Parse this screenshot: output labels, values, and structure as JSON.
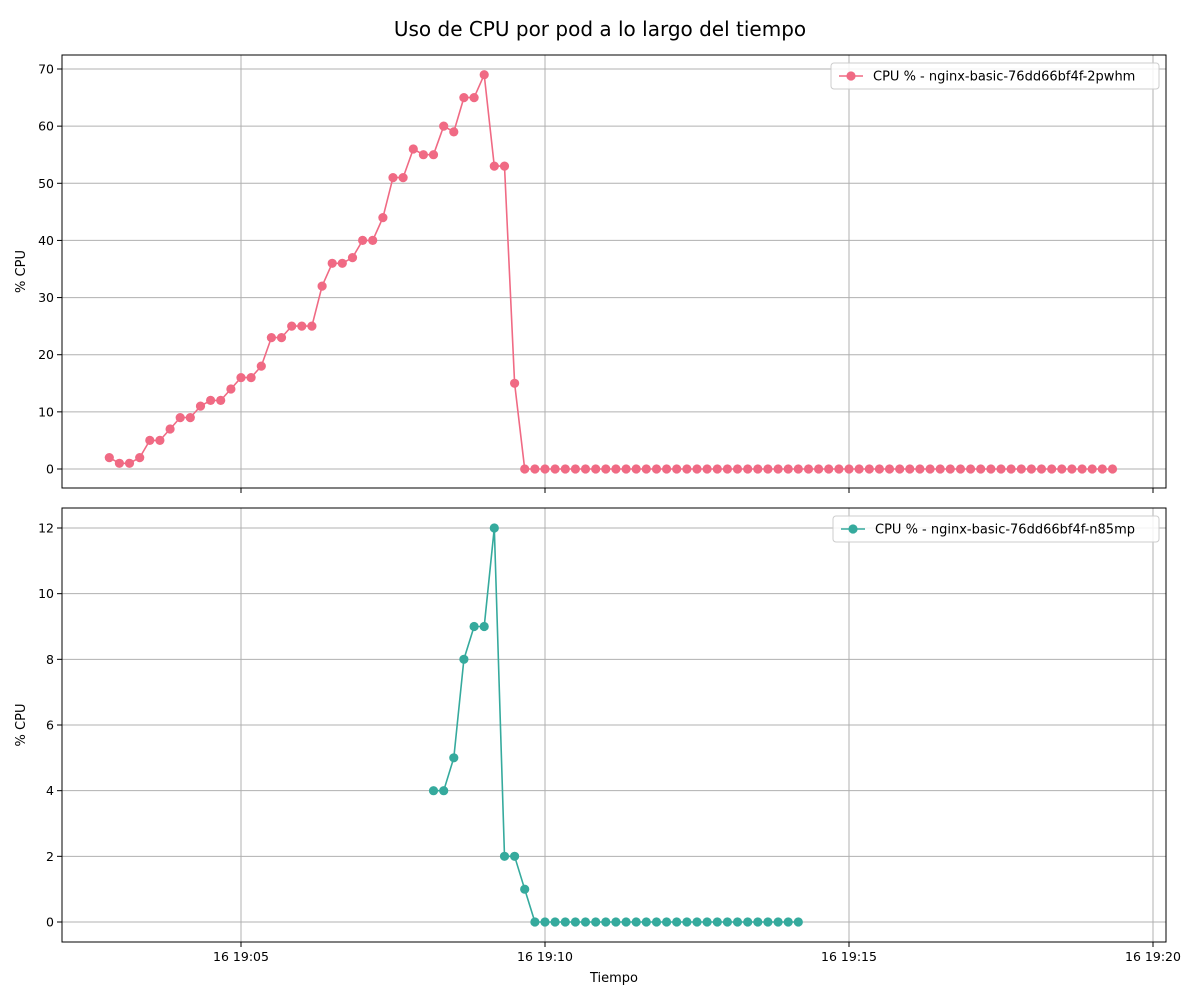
{
  "chart_data": {
    "title": "Uso de CPU por pod a lo largo del tiempo",
    "xlabel": "Tiempo",
    "type": "line",
    "x_ticks": [
      "16 19:05",
      "16 19:10",
      "16 19:15",
      "16 19:20"
    ],
    "grid": true,
    "legend_position": "top-right",
    "subplots": [
      {
        "type": "line",
        "ylabel": "% CPU",
        "ylim": [
          0,
          70
        ],
        "y_ticks": [
          "0",
          "10",
          "20",
          "30",
          "40",
          "50",
          "60",
          "70"
        ],
        "color": "#f06a84",
        "series": [
          {
            "name": "CPU % - nginx-basic-76dd66bf4f-2pwhm",
            "x": [
              "19:02:50",
              "19:03:00",
              "19:03:10",
              "19:03:20",
              "19:03:30",
              "19:03:40",
              "19:03:50",
              "19:04:00",
              "19:04:10",
              "19:04:20",
              "19:04:30",
              "19:04:40",
              "19:04:50",
              "19:05:00",
              "19:05:10",
              "19:05:20",
              "19:05:30",
              "19:05:40",
              "19:05:50",
              "19:06:00",
              "19:06:10",
              "19:06:20",
              "19:06:30",
              "19:06:40",
              "19:06:50",
              "19:07:00",
              "19:07:10",
              "19:07:20",
              "19:07:30",
              "19:07:40",
              "19:07:50",
              "19:08:00",
              "19:08:10",
              "19:08:20",
              "19:08:30",
              "19:08:40",
              "19:08:50",
              "19:09:00",
              "19:09:10",
              "19:09:20",
              "19:09:30",
              "19:09:40",
              "19:09:50",
              "19:10:00",
              "19:10:10",
              "19:10:20",
              "19:10:30",
              "19:10:40",
              "19:10:50",
              "19:11:00",
              "19:11:10",
              "19:11:20",
              "19:11:30",
              "19:11:40",
              "19:11:50",
              "19:12:00",
              "19:12:10",
              "19:12:20",
              "19:12:30",
              "19:12:40",
              "19:12:50",
              "19:13:00",
              "19:13:10",
              "19:13:20",
              "19:13:30",
              "19:13:40",
              "19:13:50",
              "19:14:00",
              "19:14:10",
              "19:14:20",
              "19:14:30",
              "19:14:40",
              "19:14:50",
              "19:15:00",
              "19:15:10",
              "19:15:20",
              "19:15:30",
              "19:15:40",
              "19:15:50",
              "19:16:00",
              "19:16:10",
              "19:16:20",
              "19:16:30",
              "19:16:40",
              "19:16:50",
              "19:17:00",
              "19:17:10",
              "19:17:20",
              "19:17:30",
              "19:17:40",
              "19:17:50",
              "19:18:00",
              "19:18:10",
              "19:18:20",
              "19:18:30",
              "19:18:40",
              "19:18:50",
              "19:19:00",
              "19:19:10",
              "19:19:20"
            ],
            "values": [
              2,
              1,
              1,
              2,
              5,
              5,
              7,
              9,
              9,
              11,
              12,
              12,
              14,
              16,
              16,
              18,
              23,
              23,
              25,
              25,
              25,
              32,
              36,
              36,
              37,
              40,
              40,
              44,
              51,
              51,
              56,
              55,
              55,
              60,
              59,
              65,
              65,
              69,
              53,
              53,
              15,
              0,
              0,
              0,
              0,
              0,
              0,
              0,
              0,
              0,
              0,
              0,
              0,
              0,
              0,
              0,
              0,
              0,
              0,
              0,
              0,
              0,
              0,
              0,
              0,
              0,
              0,
              0,
              0,
              0,
              0,
              0,
              0,
              0,
              0,
              0,
              0,
              0,
              0,
              0,
              0,
              0,
              0,
              0,
              0,
              0,
              0,
              0,
              0,
              0,
              0,
              0,
              0,
              0,
              0,
              0,
              0,
              0,
              0,
              0
            ]
          }
        ]
      },
      {
        "type": "line",
        "ylabel": "% CPU",
        "ylim": [
          0,
          12
        ],
        "y_ticks": [
          "0",
          "2",
          "4",
          "6",
          "8",
          "10",
          "12"
        ],
        "color": "#35aa9d",
        "series": [
          {
            "name": "CPU % - nginx-basic-76dd66bf4f-n85mp",
            "x": [
              "19:08:10",
              "19:08:20",
              "19:08:30",
              "19:08:40",
              "19:08:50",
              "19:09:00",
              "19:09:10",
              "19:09:20",
              "19:09:30",
              "19:09:40",
              "19:09:50",
              "19:10:00",
              "19:10:10",
              "19:10:20",
              "19:10:30",
              "19:10:40",
              "19:10:50",
              "19:11:00",
              "19:11:10",
              "19:11:20",
              "19:11:30",
              "19:11:40",
              "19:11:50",
              "19:12:00",
              "19:12:10",
              "19:12:20",
              "19:12:30",
              "19:12:40",
              "19:12:50",
              "19:13:00",
              "19:13:10",
              "19:13:20",
              "19:13:30",
              "19:13:40",
              "19:13:50",
              "19:14:00",
              "19:14:10"
            ],
            "values": [
              4,
              4,
              5,
              8,
              9,
              9,
              12,
              2,
              2,
              1,
              0,
              0,
              0,
              0,
              0,
              0,
              0,
              0,
              0,
              0,
              0,
              0,
              0,
              0,
              0,
              0,
              0,
              0,
              0,
              0,
              0,
              0,
              0,
              0,
              0,
              0,
              0
            ]
          }
        ]
      }
    ]
  }
}
